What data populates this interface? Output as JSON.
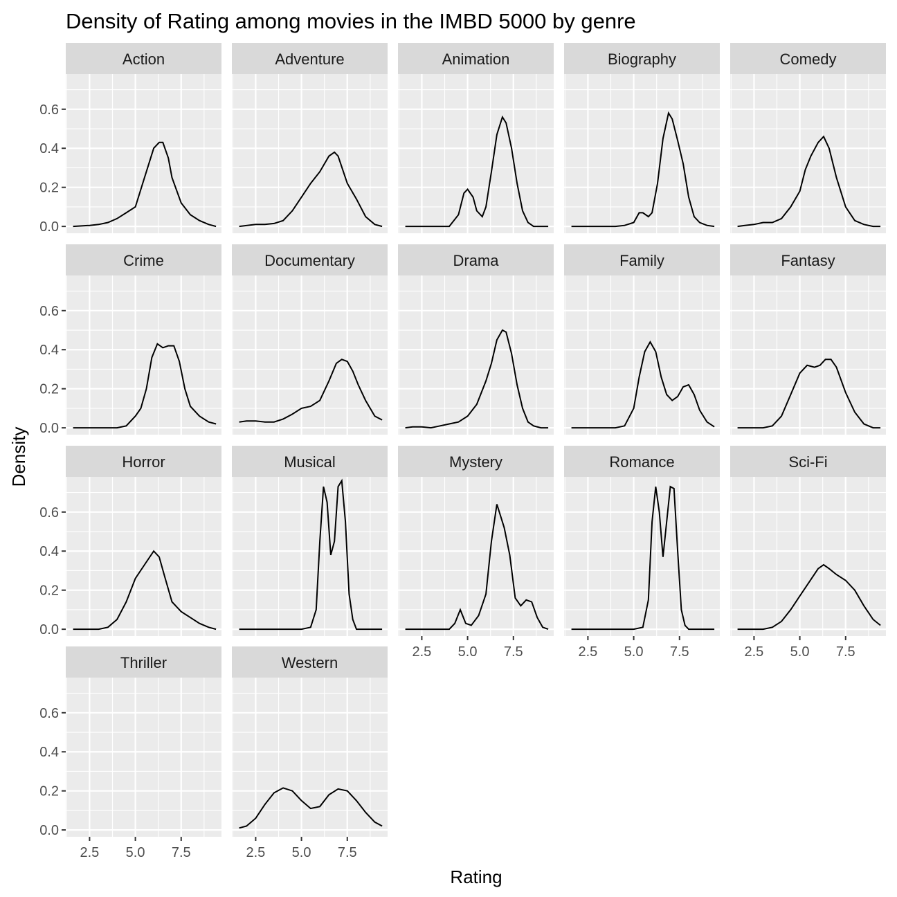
{
  "chart_data": {
    "type": "line",
    "facet": "wrap",
    "title": "Density of Rating among movies in the IMBD 5000 by genre",
    "xlabel": "Rating",
    "ylabel": "Density",
    "xlim": [
      1.2,
      9.7
    ],
    "ylim": [
      -0.035,
      0.78
    ],
    "x_ticks": [
      2.5,
      5.0,
      7.5
    ],
    "x_tick_labels": [
      "2.5",
      "5.0",
      "7.5"
    ],
    "y_ticks": [
      0.0,
      0.2,
      0.4,
      0.6
    ],
    "y_tick_labels": [
      "0.0",
      "0.2",
      "0.4",
      "0.6"
    ],
    "grid": true,
    "line_color": "#000000",
    "panel_background": "#ebebeb",
    "strip_background": "#d9d9d9",
    "panels": [
      {
        "name": "Action",
        "x": [
          1.6,
          2.5,
          3.0,
          3.5,
          4.0,
          4.5,
          5.0,
          5.5,
          6.0,
          6.3,
          6.5,
          6.8,
          7.0,
          7.5,
          8.0,
          8.5,
          9.0,
          9.4
        ],
        "y": [
          0.0,
          0.005,
          0.01,
          0.02,
          0.04,
          0.07,
          0.1,
          0.25,
          0.4,
          0.43,
          0.43,
          0.35,
          0.25,
          0.12,
          0.06,
          0.03,
          0.01,
          0.0
        ]
      },
      {
        "name": "Adventure",
        "x": [
          1.6,
          2.5,
          3.0,
          3.5,
          4.0,
          4.5,
          5.0,
          5.5,
          6.0,
          6.5,
          6.8,
          7.0,
          7.5,
          8.0,
          8.5,
          9.0,
          9.4
        ],
        "y": [
          0.0,
          0.01,
          0.01,
          0.015,
          0.03,
          0.08,
          0.15,
          0.22,
          0.28,
          0.36,
          0.38,
          0.36,
          0.22,
          0.14,
          0.05,
          0.01,
          0.0
        ]
      },
      {
        "name": "Animation",
        "x": [
          1.6,
          2.5,
          3.0,
          3.5,
          4.0,
          4.5,
          4.8,
          5.0,
          5.3,
          5.5,
          5.8,
          6.0,
          6.3,
          6.6,
          6.9,
          7.1,
          7.4,
          7.7,
          8.0,
          8.3,
          8.6,
          9.0,
          9.4
        ],
        "y": [
          0.0,
          0.0,
          0.0,
          0.0,
          0.0,
          0.06,
          0.17,
          0.19,
          0.15,
          0.08,
          0.05,
          0.1,
          0.28,
          0.47,
          0.56,
          0.53,
          0.4,
          0.22,
          0.08,
          0.02,
          0.0,
          0.0,
          0.0
        ]
      },
      {
        "name": "Biography",
        "x": [
          1.6,
          3.0,
          4.0,
          4.5,
          5.0,
          5.3,
          5.5,
          5.8,
          6.0,
          6.3,
          6.6,
          6.9,
          7.1,
          7.4,
          7.7,
          8.0,
          8.3,
          8.6,
          9.0,
          9.4
        ],
        "y": [
          0.0,
          0.0,
          0.0,
          0.005,
          0.02,
          0.07,
          0.07,
          0.05,
          0.07,
          0.22,
          0.45,
          0.58,
          0.55,
          0.44,
          0.32,
          0.15,
          0.05,
          0.02,
          0.005,
          0.0
        ]
      },
      {
        "name": "Comedy",
        "x": [
          1.6,
          2.0,
          2.5,
          3.0,
          3.5,
          4.0,
          4.5,
          5.0,
          5.3,
          5.6,
          6.0,
          6.3,
          6.6,
          7.0,
          7.5,
          8.0,
          8.5,
          9.0,
          9.4
        ],
        "y": [
          0.0,
          0.005,
          0.01,
          0.02,
          0.02,
          0.04,
          0.1,
          0.18,
          0.29,
          0.36,
          0.43,
          0.46,
          0.4,
          0.25,
          0.1,
          0.03,
          0.01,
          0.0,
          0.0
        ]
      },
      {
        "name": "Crime",
        "x": [
          1.6,
          3.0,
          4.0,
          4.5,
          5.0,
          5.3,
          5.6,
          5.9,
          6.2,
          6.5,
          6.8,
          7.1,
          7.4,
          7.7,
          8.0,
          8.5,
          9.0,
          9.4
        ],
        "y": [
          0.0,
          0.0,
          0.0,
          0.01,
          0.06,
          0.1,
          0.2,
          0.36,
          0.43,
          0.41,
          0.42,
          0.42,
          0.34,
          0.2,
          0.11,
          0.06,
          0.03,
          0.02
        ]
      },
      {
        "name": "Documentary",
        "x": [
          1.6,
          2.0,
          2.5,
          3.0,
          3.5,
          4.0,
          4.5,
          5.0,
          5.5,
          6.0,
          6.5,
          6.9,
          7.2,
          7.5,
          7.8,
          8.1,
          8.5,
          9.0,
          9.4
        ],
        "y": [
          0.03,
          0.035,
          0.035,
          0.03,
          0.03,
          0.045,
          0.07,
          0.1,
          0.11,
          0.14,
          0.24,
          0.33,
          0.35,
          0.34,
          0.29,
          0.22,
          0.14,
          0.06,
          0.04
        ]
      },
      {
        "name": "Drama",
        "x": [
          1.6,
          2.0,
          2.5,
          3.0,
          3.5,
          4.0,
          4.5,
          5.0,
          5.5,
          6.0,
          6.3,
          6.6,
          6.9,
          7.1,
          7.4,
          7.7,
          8.0,
          8.3,
          8.6,
          9.0,
          9.4
        ],
        "y": [
          0.0,
          0.005,
          0.005,
          0.0,
          0.01,
          0.02,
          0.03,
          0.06,
          0.12,
          0.24,
          0.33,
          0.45,
          0.5,
          0.49,
          0.38,
          0.22,
          0.1,
          0.03,
          0.01,
          0.0,
          0.0
        ]
      },
      {
        "name": "Family",
        "x": [
          1.6,
          3.0,
          4.0,
          4.5,
          5.0,
          5.3,
          5.6,
          5.9,
          6.2,
          6.5,
          6.8,
          7.1,
          7.4,
          7.7,
          8.0,
          8.3,
          8.6,
          9.0,
          9.4
        ],
        "y": [
          0.0,
          0.0,
          0.0,
          0.01,
          0.1,
          0.26,
          0.39,
          0.44,
          0.39,
          0.26,
          0.17,
          0.14,
          0.16,
          0.21,
          0.22,
          0.17,
          0.09,
          0.03,
          0.005
        ]
      },
      {
        "name": "Fantasy",
        "x": [
          1.6,
          3.0,
          3.5,
          4.0,
          4.5,
          5.0,
          5.4,
          5.8,
          6.1,
          6.4,
          6.7,
          7.0,
          7.5,
          8.0,
          8.5,
          9.0,
          9.4
        ],
        "y": [
          0.0,
          0.0,
          0.01,
          0.06,
          0.17,
          0.28,
          0.32,
          0.31,
          0.32,
          0.35,
          0.35,
          0.31,
          0.18,
          0.08,
          0.02,
          0.0,
          0.0
        ]
      },
      {
        "name": "Horror",
        "x": [
          1.6,
          2.5,
          3.0,
          3.5,
          4.0,
          4.5,
          5.0,
          5.5,
          6.0,
          6.3,
          6.6,
          7.0,
          7.5,
          8.0,
          8.5,
          9.0,
          9.4
        ],
        "y": [
          0.0,
          0.0,
          0.0,
          0.01,
          0.05,
          0.14,
          0.26,
          0.33,
          0.4,
          0.37,
          0.27,
          0.14,
          0.09,
          0.06,
          0.03,
          0.01,
          0.0
        ]
      },
      {
        "name": "Musical",
        "x": [
          1.6,
          3.0,
          4.0,
          5.0,
          5.5,
          5.8,
          6.0,
          6.2,
          6.4,
          6.6,
          6.8,
          7.0,
          7.2,
          7.4,
          7.6,
          7.8,
          8.0,
          8.5,
          9.0,
          9.4
        ],
        "y": [
          0.0,
          0.0,
          0.0,
          0.0,
          0.01,
          0.1,
          0.45,
          0.73,
          0.65,
          0.38,
          0.45,
          0.73,
          0.76,
          0.55,
          0.18,
          0.05,
          0.0,
          0.0,
          0.0,
          0.0
        ]
      },
      {
        "name": "Mystery",
        "x": [
          1.6,
          3.0,
          4.0,
          4.3,
          4.6,
          4.9,
          5.2,
          5.6,
          6.0,
          6.3,
          6.6,
          6.8,
          7.0,
          7.3,
          7.6,
          7.9,
          8.2,
          8.5,
          8.8,
          9.1,
          9.4
        ],
        "y": [
          0.0,
          0.0,
          0.0,
          0.03,
          0.1,
          0.03,
          0.02,
          0.07,
          0.18,
          0.45,
          0.64,
          0.58,
          0.52,
          0.38,
          0.16,
          0.12,
          0.15,
          0.14,
          0.06,
          0.01,
          0.0
        ]
      },
      {
        "name": "Romance",
        "x": [
          1.6,
          3.0,
          4.0,
          5.0,
          5.5,
          5.8,
          6.0,
          6.2,
          6.4,
          6.6,
          6.8,
          7.0,
          7.2,
          7.4,
          7.6,
          7.8,
          8.0,
          8.5,
          9.0,
          9.4
        ],
        "y": [
          0.0,
          0.0,
          0.0,
          0.0,
          0.01,
          0.15,
          0.55,
          0.73,
          0.6,
          0.37,
          0.55,
          0.73,
          0.72,
          0.4,
          0.1,
          0.02,
          0.0,
          0.0,
          0.0,
          0.0
        ]
      },
      {
        "name": "Sci-Fi",
        "x": [
          1.6,
          3.0,
          3.5,
          4.0,
          4.5,
          5.0,
          5.5,
          6.0,
          6.3,
          6.6,
          7.0,
          7.5,
          8.0,
          8.5,
          9.0,
          9.4
        ],
        "y": [
          0.0,
          0.0,
          0.01,
          0.04,
          0.1,
          0.17,
          0.24,
          0.31,
          0.33,
          0.31,
          0.28,
          0.25,
          0.2,
          0.12,
          0.05,
          0.02
        ]
      },
      {
        "name": "Thriller",
        "x": [],
        "y": []
      },
      {
        "name": "Western",
        "x": [
          1.6,
          2.0,
          2.5,
          3.0,
          3.5,
          4.0,
          4.5,
          5.0,
          5.5,
          6.0,
          6.5,
          7.0,
          7.5,
          8.0,
          8.5,
          9.0,
          9.4
        ],
        "y": [
          0.01,
          0.02,
          0.06,
          0.13,
          0.19,
          0.215,
          0.2,
          0.15,
          0.11,
          0.12,
          0.18,
          0.21,
          0.2,
          0.15,
          0.09,
          0.04,
          0.02
        ]
      }
    ]
  }
}
